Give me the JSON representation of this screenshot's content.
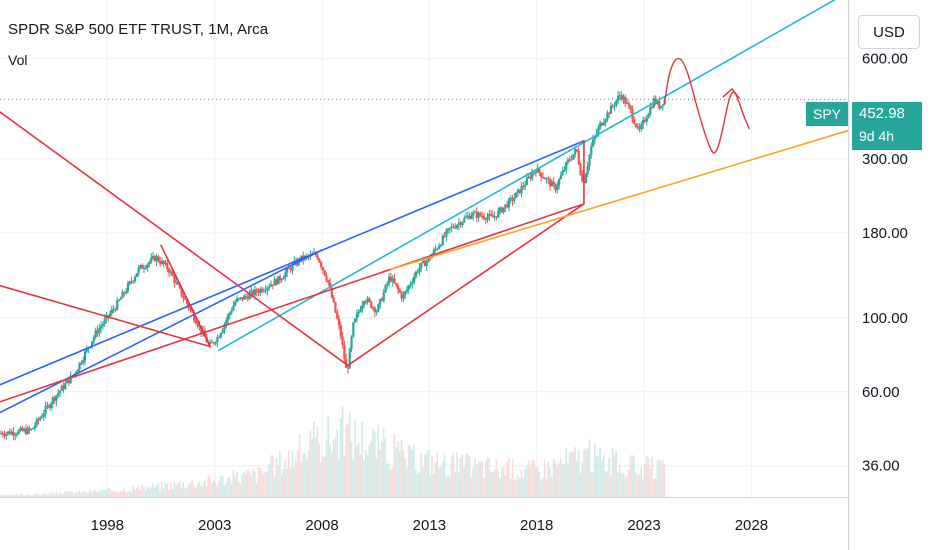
{
  "header": {
    "title": "SPDR S&P 500 ETF TRUST, 1M, Arca",
    "volume_label": "Vol"
  },
  "price_scale": {
    "currency": "USD"
  },
  "last_price": {
    "ticker": "SPY",
    "price": "452.98",
    "countdown": "9d 4h"
  },
  "colors": {
    "up": "#26a69a",
    "down": "#ef5350",
    "cyan_line": "#22b8cf",
    "blue_line": "#2962ff",
    "red_line": "#e53340",
    "orange_line": "#f5a623",
    "price_line": "#26a69a"
  },
  "chart_data": {
    "type": "candlestick",
    "y_scale": "log",
    "ylim": [
      29,
      900
    ],
    "xlim": [
      1993.0,
      2032.5
    ],
    "y_ticks": [
      600,
      300,
      180,
      100,
      60,
      36
    ],
    "y_tick_labels": [
      "600.00",
      "300.00",
      "180.00",
      "100.00",
      "60.00",
      "36.00"
    ],
    "x_ticks": [
      1998,
      2003,
      2008,
      2013,
      2018,
      2023,
      2028
    ],
    "x_tick_labels": [
      "1998",
      "2003",
      "2008",
      "2013",
      "2018",
      "2023",
      "2028"
    ],
    "last_close": 452.98,
    "price_path": [
      [
        1993.0,
        45
      ],
      [
        1994.5,
        46
      ],
      [
        1995.5,
        57
      ],
      [
        1996.5,
        68
      ],
      [
        1997.5,
        90
      ],
      [
        1998.5,
        110
      ],
      [
        1999.5,
        140
      ],
      [
        2000.3,
        152
      ],
      [
        2000.9,
        140
      ],
      [
        2001.5,
        118
      ],
      [
        2002.3,
        95
      ],
      [
        2002.8,
        82
      ],
      [
        2003.2,
        88
      ],
      [
        2004.0,
        112
      ],
      [
        2005.0,
        120
      ],
      [
        2006.0,
        130
      ],
      [
        2007.0,
        150
      ],
      [
        2007.8,
        155
      ],
      [
        2008.3,
        130
      ],
      [
        2008.9,
        90
      ],
      [
        2009.2,
        68
      ],
      [
        2009.5,
        95
      ],
      [
        2010.0,
        115
      ],
      [
        2010.6,
        105
      ],
      [
        2011.2,
        133
      ],
      [
        2011.8,
        115
      ],
      [
        2012.5,
        140
      ],
      [
        2013.0,
        150
      ],
      [
        2014.0,
        185
      ],
      [
        2015.0,
        205
      ],
      [
        2016.0,
        200
      ],
      [
        2017.0,
        230
      ],
      [
        2018.0,
        280
      ],
      [
        2018.9,
        245
      ],
      [
        2019.5,
        295
      ],
      [
        2019.9,
        320
      ],
      [
        2020.2,
        250
      ],
      [
        2020.6,
        330
      ],
      [
        2021.0,
        380
      ],
      [
        2021.95,
        470
      ],
      [
        2022.4,
        420
      ],
      [
        2022.8,
        360
      ],
      [
        2023.2,
        410
      ],
      [
        2023.5,
        450
      ],
      [
        2023.8,
        430
      ],
      [
        2023.95,
        452.98
      ]
    ],
    "volume_envelope": [
      [
        1993.0,
        0.02
      ],
      [
        1998.0,
        0.08
      ],
      [
        2002.5,
        0.2
      ],
      [
        2005.0,
        0.3
      ],
      [
        2008.0,
        0.75
      ],
      [
        2009.0,
        0.85
      ],
      [
        2010.5,
        0.7
      ],
      [
        2012.0,
        0.5
      ],
      [
        2015.0,
        0.4
      ],
      [
        2018.0,
        0.35
      ],
      [
        2020.2,
        0.55
      ],
      [
        2022.0,
        0.4
      ],
      [
        2024.0,
        0.35
      ]
    ],
    "trendlines": [
      {
        "color": "cyan",
        "points": [
          [
            2003.2,
            80
          ],
          [
            2032.5,
            950
          ]
        ]
      },
      {
        "color": "blue",
        "points": [
          [
            1993.0,
            52
          ],
          [
            2008.0,
            160
          ]
        ]
      },
      {
        "color": "blue",
        "points": [
          [
            1993.0,
            63
          ],
          [
            2020.2,
            340
          ]
        ]
      },
      {
        "color": "red",
        "points": [
          [
            1993.0,
            56
          ],
          [
            2020.2,
            220
          ]
        ]
      },
      {
        "color": "red",
        "points": [
          [
            2009.2,
            72
          ],
          [
            2020.2,
            220
          ]
        ]
      },
      {
        "color": "red",
        "points": [
          [
            1993.0,
            415
          ],
          [
            2009.2,
            72
          ]
        ]
      },
      {
        "color": "red",
        "points": [
          [
            1993.0,
            125
          ],
          [
            2002.8,
            82
          ]
        ]
      },
      {
        "color": "red",
        "points": [
          [
            2000.5,
            165
          ],
          [
            2002.8,
            82
          ]
        ]
      },
      {
        "color": "red",
        "points": [
          [
            2020.2,
            220
          ],
          [
            2020.2,
            340
          ]
        ]
      },
      {
        "color": "orange",
        "points": [
          [
            2011.2,
            140
          ],
          [
            2032.5,
            365
          ]
        ]
      }
    ],
    "projection_sketch": [
      [
        2023.95,
        440
      ],
      [
        2024.2,
        560
      ],
      [
        2024.6,
        615
      ],
      [
        2025.0,
        560
      ],
      [
        2025.5,
        420
      ],
      [
        2026.0,
        330
      ],
      [
        2026.3,
        305
      ],
      [
        2026.6,
        350
      ],
      [
        2026.9,
        440
      ],
      [
        2027.1,
        480
      ],
      [
        2027.3,
        470
      ],
      [
        2027.6,
        410
      ],
      [
        2027.9,
        370
      ]
    ]
  }
}
